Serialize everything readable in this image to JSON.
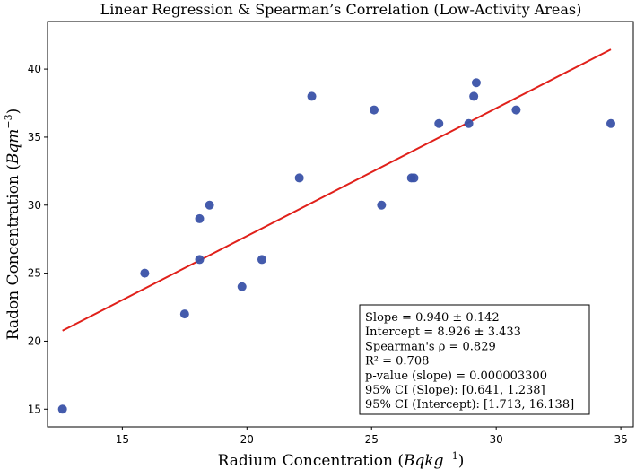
{
  "chart_data": {
    "type": "scatter",
    "title": "Linear Regression & Spearman’s Correlation (Low-Activity Areas)",
    "xlabel_text": "Radium Concentration",
    "xlabel_unit": "Bqkg",
    "xlabel_exp": "−1",
    "ylabel_text": "Radon Concentration",
    "ylabel_unit": "Bqm",
    "ylabel_exp": "−3",
    "xlim": [
      12.0,
      35.5
    ],
    "ylim": [
      13.7,
      43.5
    ],
    "xticks": [
      15,
      20,
      25,
      30,
      35
    ],
    "yticks": [
      15,
      20,
      25,
      30,
      35,
      40
    ],
    "points": [
      {
        "x": 12.6,
        "y": 15
      },
      {
        "x": 15.9,
        "y": 25
      },
      {
        "x": 17.5,
        "y": 22
      },
      {
        "x": 18.1,
        "y": 29
      },
      {
        "x": 18.1,
        "y": 26
      },
      {
        "x": 18.5,
        "y": 30
      },
      {
        "x": 19.8,
        "y": 24
      },
      {
        "x": 20.6,
        "y": 26
      },
      {
        "x": 22.1,
        "y": 32
      },
      {
        "x": 22.6,
        "y": 38
      },
      {
        "x": 25.1,
        "y": 37
      },
      {
        "x": 25.4,
        "y": 30
      },
      {
        "x": 26.6,
        "y": 32
      },
      {
        "x": 26.7,
        "y": 32
      },
      {
        "x": 27.7,
        "y": 36
      },
      {
        "x": 28.9,
        "y": 36
      },
      {
        "x": 29.1,
        "y": 38
      },
      {
        "x": 29.2,
        "y": 39
      },
      {
        "x": 30.8,
        "y": 37
      },
      {
        "x": 34.6,
        "y": 36
      }
    ],
    "regression": {
      "slope": 0.94,
      "intercept": 8.926,
      "x_start": 12.6,
      "x_end": 34.6
    },
    "colors": {
      "points": "#3a52a8",
      "line": "#e0201a"
    },
    "stats_box_position": "bottom-right",
    "stats_lines": [
      "Slope = 0.940 ± 0.142",
      "Intercept = 8.926 ± 3.433",
      "Spearman's ρ = 0.829",
      "R² = 0.708",
      "p-value (slope) = 0.000003300",
      "95% CI (Slope): [0.641, 1.238]",
      "95% CI (Intercept): [1.713, 16.138]"
    ]
  }
}
